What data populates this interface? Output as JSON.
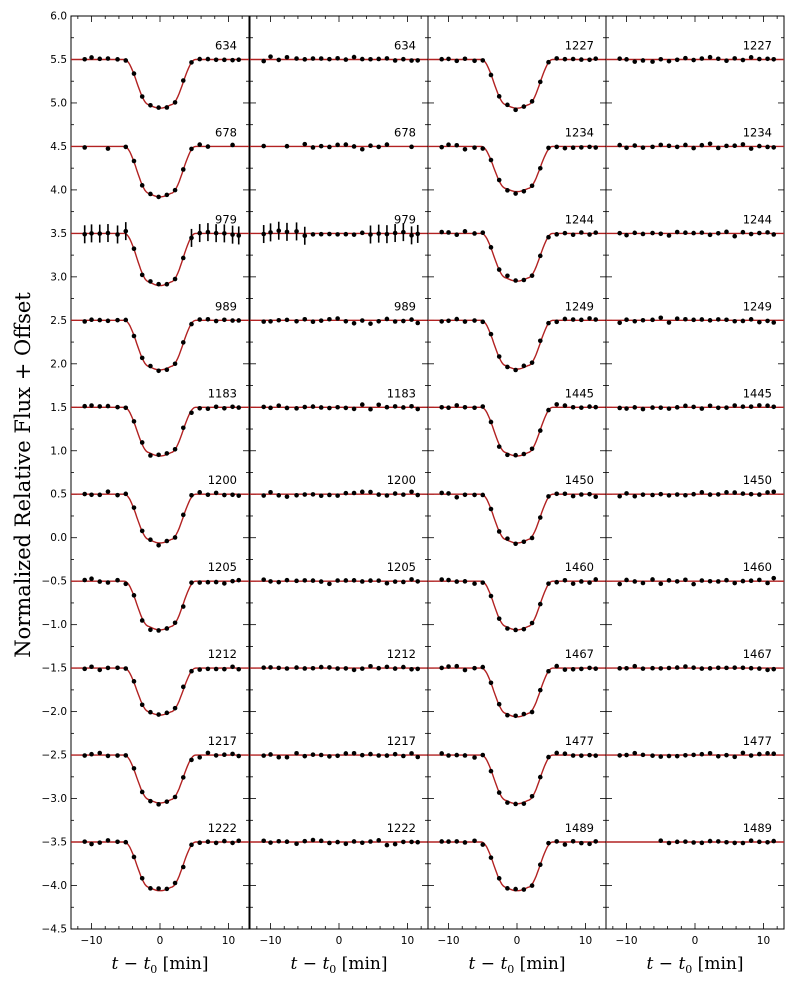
{
  "figure": {
    "ylabel": "Normalized Relative Flux + Offset",
    "xlabel": "t − t0 [min]",
    "xlabel_main": "t − t",
    "xlabel_sub": "0",
    "xlabel_unit": " [min]",
    "model_color": "#b22222",
    "point_color": "#000000"
  },
  "chart_data": [
    {
      "type": "scatter",
      "panel": "col-1-transit-data",
      "xlim": [
        -13,
        13
      ],
      "ylim": [
        -4.5,
        6.0
      ],
      "x_ticks": [
        -10,
        0,
        10
      ],
      "y_ticks": [
        -4.5,
        -4.0,
        -3.5,
        -3.0,
        -2.5,
        -2.0,
        -1.5,
        -1.0,
        -0.5,
        0.0,
        0.5,
        1.0,
        1.5,
        2.0,
        2.5,
        3.0,
        3.5,
        4.0,
        4.5,
        5.0,
        5.5,
        6.0
      ],
      "x_tick_labels": [
        "−10",
        "0",
        "10"
      ],
      "y_tick_labels": [
        "−4.5",
        "−4.0",
        "−3.5",
        "−3.0",
        "−2.5",
        "−2.0",
        "−1.5",
        "−1.0",
        "−0.5",
        "0.0",
        "0.5",
        "1.0",
        "1.5",
        "2.0",
        "2.5",
        "3.0",
        "3.5",
        "4.0",
        "4.5",
        "5.0",
        "5.5",
        "6.0"
      ],
      "model": "transit",
      "series": [
        {
          "label": "634",
          "offset": 5.5,
          "depth": 0.56
        },
        {
          "label": "678",
          "offset": 4.5,
          "depth": 0.58
        },
        {
          "label": "979",
          "offset": 3.5,
          "depth": 0.6
        },
        {
          "label": "989",
          "offset": 2.5,
          "depth": 0.57
        },
        {
          "label": "1183",
          "offset": 1.5,
          "depth": 0.56
        },
        {
          "label": "1200",
          "offset": 0.5,
          "depth": 0.56
        },
        {
          "label": "1205",
          "offset": -0.5,
          "depth": 0.56
        },
        {
          "label": "1212",
          "offset": -1.5,
          "depth": 0.54
        },
        {
          "label": "1217",
          "offset": -2.5,
          "depth": 0.55
        },
        {
          "label": "1222",
          "offset": -3.5,
          "depth": 0.56
        }
      ]
    },
    {
      "type": "scatter",
      "panel": "col-2-residuals",
      "xlim": [
        -13,
        13
      ],
      "ylim": [
        -4.5,
        6.0
      ],
      "x_ticks": [
        -10,
        0,
        10
      ],
      "x_tick_labels": [
        "−10",
        "0",
        "10"
      ],
      "model": "flat",
      "series": [
        {
          "label": "634",
          "offset": 5.5
        },
        {
          "label": "678",
          "offset": 4.5
        },
        {
          "label": "979",
          "offset": 3.5
        },
        {
          "label": "989",
          "offset": 2.5
        },
        {
          "label": "1183",
          "offset": 1.5
        },
        {
          "label": "1200",
          "offset": 0.5
        },
        {
          "label": "1205",
          "offset": -0.5
        },
        {
          "label": "1212",
          "offset": -1.5
        },
        {
          "label": "1217",
          "offset": -2.5
        },
        {
          "label": "1222",
          "offset": -3.5
        }
      ]
    },
    {
      "type": "scatter",
      "panel": "col-3-transit-data",
      "xlim": [
        -13,
        13
      ],
      "ylim": [
        -4.5,
        6.0
      ],
      "x_ticks": [
        -10,
        0,
        10
      ],
      "x_tick_labels": [
        "−10",
        "0",
        "10"
      ],
      "model": "transit",
      "series": [
        {
          "label": "1227",
          "offset": 5.5,
          "depth": 0.56
        },
        {
          "label": "1234",
          "offset": 4.5,
          "depth": 0.52
        },
        {
          "label": "1244",
          "offset": 3.5,
          "depth": 0.55
        },
        {
          "label": "1249",
          "offset": 2.5,
          "depth": 0.56
        },
        {
          "label": "1445",
          "offset": 1.5,
          "depth": 0.56
        },
        {
          "label": "1450",
          "offset": 0.5,
          "depth": 0.56
        },
        {
          "label": "1460",
          "offset": -0.5,
          "depth": 0.56
        },
        {
          "label": "1467",
          "offset": -1.5,
          "depth": 0.56
        },
        {
          "label": "1477",
          "offset": -2.5,
          "depth": 0.56
        },
        {
          "label": "1489",
          "offset": -3.5,
          "depth": 0.56
        }
      ]
    },
    {
      "type": "scatter",
      "panel": "col-4-residuals",
      "xlim": [
        -13,
        13
      ],
      "ylim": [
        -4.5,
        6.0
      ],
      "x_ticks": [
        -10,
        0,
        10
      ],
      "x_tick_labels": [
        "−10",
        "0",
        "10"
      ],
      "model": "flat",
      "series": [
        {
          "label": "1227",
          "offset": 5.5
        },
        {
          "label": "1234",
          "offset": 4.5
        },
        {
          "label": "1244",
          "offset": 3.5
        },
        {
          "label": "1249",
          "offset": 2.5
        },
        {
          "label": "1445",
          "offset": 1.5
        },
        {
          "label": "1450",
          "offset": 0.5
        },
        {
          "label": "1460",
          "offset": -0.5
        },
        {
          "label": "1467",
          "offset": -1.5
        },
        {
          "label": "1477",
          "offset": -2.5
        },
        {
          "label": "1489",
          "offset": -3.5
        }
      ]
    }
  ]
}
